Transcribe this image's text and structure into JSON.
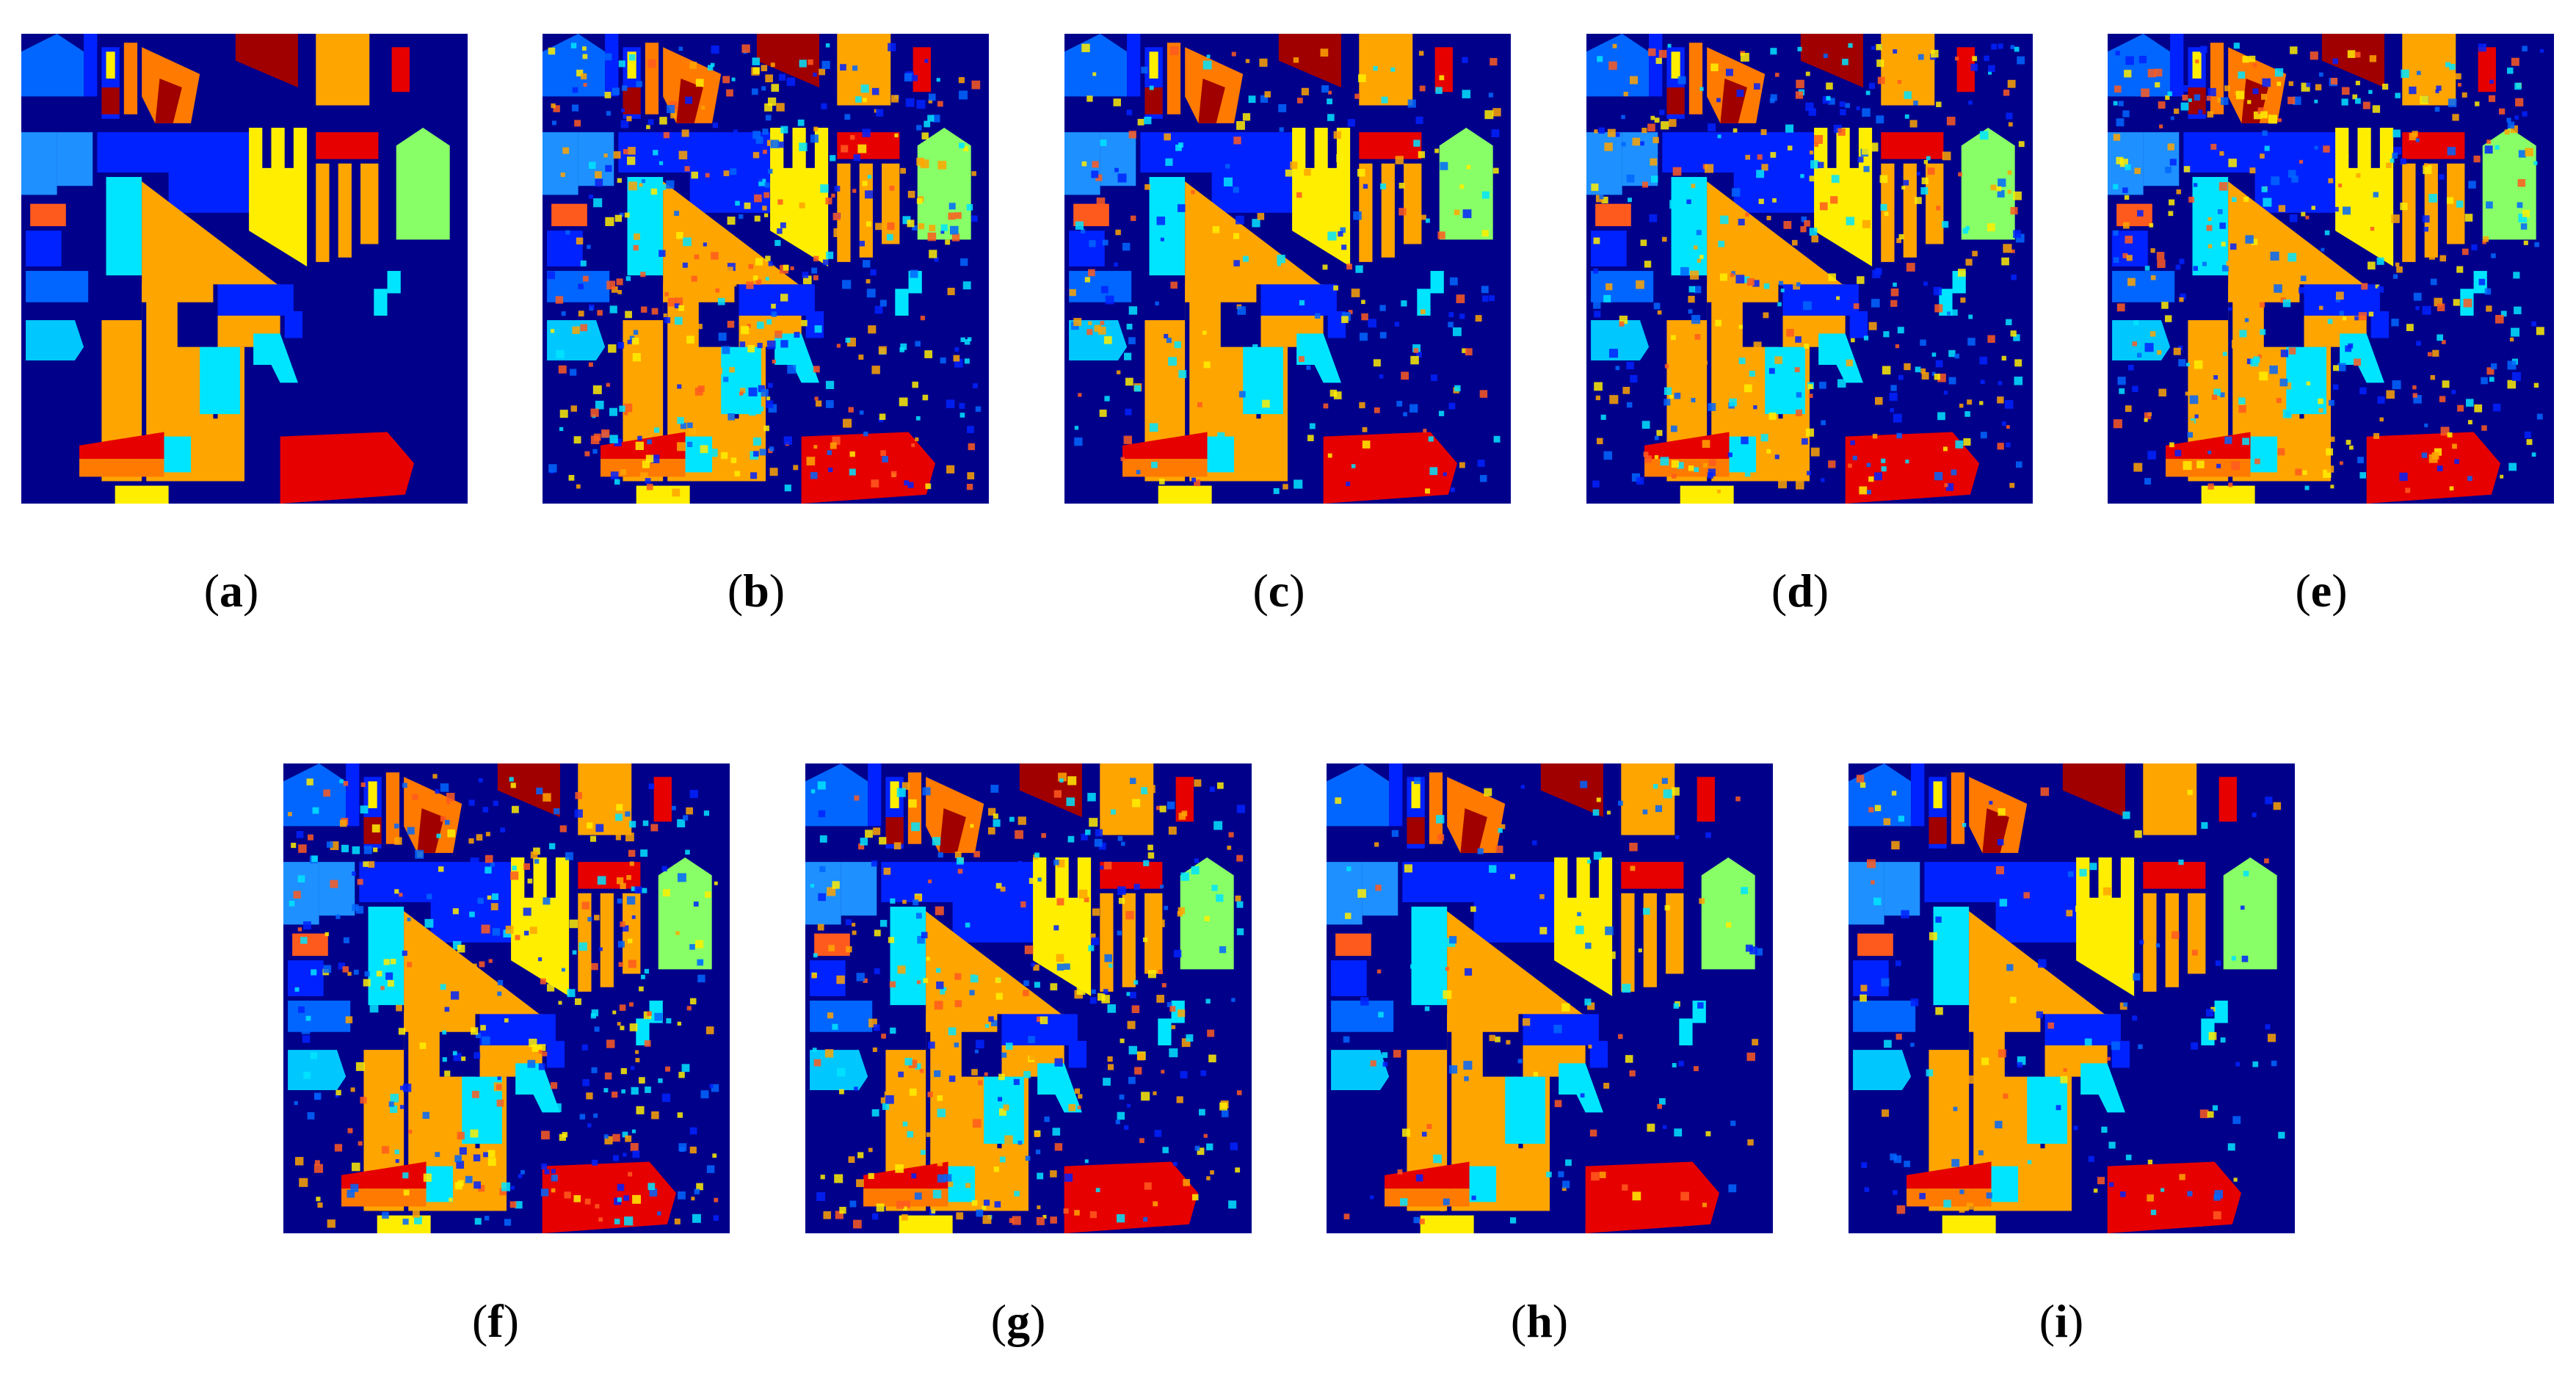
{
  "figure": {
    "panels": [
      {
        "id": "a",
        "label_open": "(",
        "label_letter": "a",
        "label_close": ")",
        "noise": 0.0
      },
      {
        "id": "b",
        "label_open": "(",
        "label_letter": "b",
        "label_close": ")",
        "noise": 0.35
      },
      {
        "id": "c",
        "label_open": "(",
        "label_letter": "c",
        "label_close": ")",
        "noise": 0.18
      },
      {
        "id": "d",
        "label_open": "(",
        "label_letter": "d",
        "label_close": ")",
        "noise": 0.3
      },
      {
        "id": "e",
        "label_open": "(",
        "label_letter": "e",
        "label_close": ")",
        "noise": 0.32
      },
      {
        "id": "f",
        "label_open": "(",
        "label_letter": "f",
        "label_close": ")",
        "noise": 0.3
      },
      {
        "id": "g",
        "label_open": "(",
        "label_letter": "g",
        "label_close": ")",
        "noise": 0.28
      },
      {
        "id": "h",
        "label_open": "(",
        "label_letter": "h",
        "label_close": ")",
        "noise": 0.1
      },
      {
        "id": "i",
        "label_open": "(",
        "label_letter": "i",
        "label_close": ")",
        "noise": 0.1
      }
    ],
    "colors": {
      "background": "#00008b",
      "blue": "#0022ff",
      "mid_blue": "#0066ff",
      "light_blue": "#1e90ff",
      "cyan": "#00e5ff",
      "sky": "#00c8ff",
      "orange": "#ffa500",
      "dark_orange": "#ff7a00",
      "red_orange": "#ff5a1e",
      "red": "#e60000",
      "dark_red": "#a00000",
      "yellow": "#ffee00",
      "green": "#88ff66"
    }
  }
}
